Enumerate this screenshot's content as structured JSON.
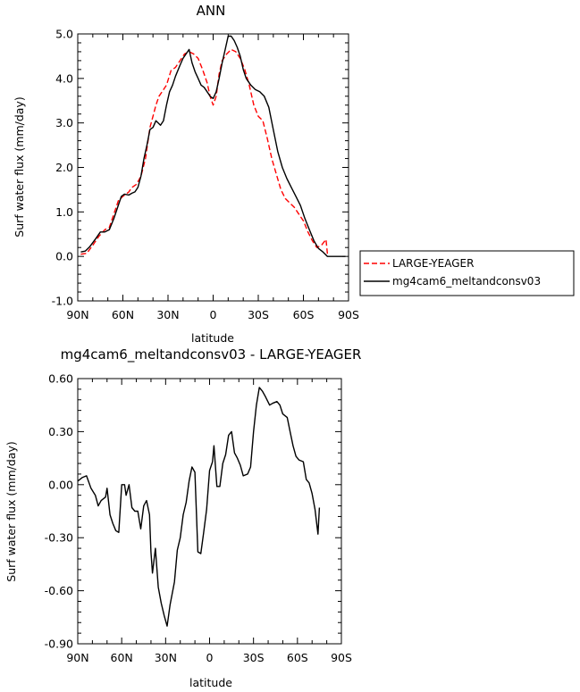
{
  "chart_data": [
    {
      "type": "line",
      "title": "ANN",
      "xlabel": "latitude",
      "ylabel": "Surf water flux (mm/day)",
      "ylim": [
        -1.0,
        5.0
      ],
      "xlim": [
        90,
        -90
      ],
      "xticks": [
        {
          "value": 90,
          "label": "90N"
        },
        {
          "value": 60,
          "label": "60N"
        },
        {
          "value": 30,
          "label": "30N"
        },
        {
          "value": 0,
          "label": "0"
        },
        {
          "value": -30,
          "label": "30S"
        },
        {
          "value": -60,
          "label": "60S"
        },
        {
          "value": -90,
          "label": "90S"
        }
      ],
      "yticks": [
        {
          "value": 5.0,
          "label": "5.0"
        },
        {
          "value": 4.0,
          "label": "4.0"
        },
        {
          "value": 3.0,
          "label": "3.0"
        },
        {
          "value": 2.0,
          "label": "2.0"
        },
        {
          "value": 1.0,
          "label": "1.0"
        },
        {
          "value": 0.0,
          "label": "0.0"
        },
        {
          "value": -1.0,
          "label": "-1.0"
        }
      ],
      "legend_position": "right-outside",
      "series": [
        {
          "name": "LARGE-YEAGER",
          "color": "#ff0000",
          "dash": "dashed",
          "points": [
            [
              88,
              0.05
            ],
            [
              84,
              0.07
            ],
            [
              80,
              0.25
            ],
            [
              76,
              0.45
            ],
            [
              72,
              0.6
            ],
            [
              69,
              0.65
            ],
            [
              66,
              0.95
            ],
            [
              63,
              1.25
            ],
            [
              60,
              1.35
            ],
            [
              58,
              1.4
            ],
            [
              56,
              1.45
            ],
            [
              54,
              1.55
            ],
            [
              51,
              1.62
            ],
            [
              48,
              1.8
            ],
            [
              45,
              2.2
            ],
            [
              42,
              2.9
            ],
            [
              40,
              3.15
            ],
            [
              38,
              3.4
            ],
            [
              36,
              3.6
            ],
            [
              34,
              3.7
            ],
            [
              31,
              3.85
            ],
            [
              28,
              4.18
            ],
            [
              25,
              4.25
            ],
            [
              22,
              4.4
            ],
            [
              19,
              4.55
            ],
            [
              16,
              4.6
            ],
            [
              13,
              4.55
            ],
            [
              10,
              4.45
            ],
            [
              7,
              4.2
            ],
            [
              4,
              3.9
            ],
            [
              2,
              3.6
            ],
            [
              0,
              3.4
            ],
            [
              -2,
              3.6
            ],
            [
              -4,
              4.1
            ],
            [
              -6,
              4.4
            ],
            [
              -9,
              4.55
            ],
            [
              -12,
              4.65
            ],
            [
              -15,
              4.6
            ],
            [
              -18,
              4.45
            ],
            [
              -21,
              4.2
            ],
            [
              -24,
              3.85
            ],
            [
              -27,
              3.4
            ],
            [
              -30,
              3.15
            ],
            [
              -33,
              3.05
            ],
            [
              -36,
              2.65
            ],
            [
              -39,
              2.2
            ],
            [
              -42,
              1.85
            ],
            [
              -45,
              1.5
            ],
            [
              -48,
              1.3
            ],
            [
              -51,
              1.2
            ],
            [
              -54,
              1.1
            ],
            [
              -57,
              0.95
            ],
            [
              -60,
              0.8
            ],
            [
              -63,
              0.55
            ],
            [
              -66,
              0.35
            ],
            [
              -69,
              0.2
            ],
            [
              -72,
              0.25
            ],
            [
              -75,
              0.38
            ],
            [
              -76,
              0.05
            ]
          ]
        },
        {
          "name": "mg4cam6_meltandconsv03",
          "color": "#000000",
          "dash": "solid",
          "points": [
            [
              88,
              0.1
            ],
            [
              85,
              0.12
            ],
            [
              82,
              0.22
            ],
            [
              78,
              0.4
            ],
            [
              75,
              0.55
            ],
            [
              72,
              0.55
            ],
            [
              69,
              0.6
            ],
            [
              66,
              0.85
            ],
            [
              63,
              1.15
            ],
            [
              61,
              1.35
            ],
            [
              59,
              1.4
            ],
            [
              56,
              1.38
            ],
            [
              54,
              1.42
            ],
            [
              52,
              1.45
            ],
            [
              50,
              1.55
            ],
            [
              48,
              1.8
            ],
            [
              46,
              2.2
            ],
            [
              44,
              2.5
            ],
            [
              42,
              2.85
            ],
            [
              40,
              2.9
            ],
            [
              38,
              3.05
            ],
            [
              35,
              2.95
            ],
            [
              33,
              3.05
            ],
            [
              31,
              3.4
            ],
            [
              29,
              3.7
            ],
            [
              27,
              3.85
            ],
            [
              25,
              4.05
            ],
            [
              22,
              4.3
            ],
            [
              20,
              4.45
            ],
            [
              18,
              4.55
            ],
            [
              16,
              4.65
            ],
            [
              14,
              4.35
            ],
            [
              12,
              4.15
            ],
            [
              10,
              4.0
            ],
            [
              8,
              3.85
            ],
            [
              6,
              3.8
            ],
            [
              4,
              3.7
            ],
            [
              2,
              3.6
            ],
            [
              0,
              3.55
            ],
            [
              -2,
              3.7
            ],
            [
              -4,
              4.0
            ],
            [
              -6,
              4.35
            ],
            [
              -8,
              4.65
            ],
            [
              -10,
              4.95
            ],
            [
              -12,
              4.95
            ],
            [
              -14,
              4.85
            ],
            [
              -16,
              4.7
            ],
            [
              -18,
              4.5
            ],
            [
              -20,
              4.2
            ],
            [
              -22,
              4.0
            ],
            [
              -25,
              3.85
            ],
            [
              -28,
              3.75
            ],
            [
              -31,
              3.7
            ],
            [
              -34,
              3.6
            ],
            [
              -37,
              3.35
            ],
            [
              -40,
              2.85
            ],
            [
              -43,
              2.35
            ],
            [
              -46,
              2.0
            ],
            [
              -49,
              1.75
            ],
            [
              -52,
              1.55
            ],
            [
              -55,
              1.35
            ],
            [
              -58,
              1.15
            ],
            [
              -61,
              0.85
            ],
            [
              -64,
              0.6
            ],
            [
              -67,
              0.35
            ],
            [
              -70,
              0.18
            ],
            [
              -73,
              0.1
            ],
            [
              -76,
              0.0
            ],
            [
              -80,
              0.0
            ],
            [
              -84,
              0.0
            ],
            [
              -88,
              0.0
            ]
          ]
        }
      ]
    },
    {
      "type": "line",
      "title": "mg4cam6_meltandconsv03 - LARGE-YEAGER",
      "xlabel": "latitude",
      "ylabel": "Surf water flux (mm/day)",
      "ylim": [
        -0.9,
        0.6
      ],
      "xlim": [
        90,
        -90
      ],
      "xticks": [
        {
          "value": 90,
          "label": "90N"
        },
        {
          "value": 60,
          "label": "60N"
        },
        {
          "value": 30,
          "label": "30N"
        },
        {
          "value": 0,
          "label": "0"
        },
        {
          "value": -30,
          "label": "30S"
        },
        {
          "value": -60,
          "label": "60S"
        },
        {
          "value": -90,
          "label": "90S"
        }
      ],
      "yticks": [
        {
          "value": 0.6,
          "label": "0.60"
        },
        {
          "value": 0.3,
          "label": "0.30"
        },
        {
          "value": 0.0,
          "label": "0.00"
        },
        {
          "value": -0.3,
          "label": "-0.30"
        },
        {
          "value": -0.6,
          "label": "-0.60"
        },
        {
          "value": -0.9,
          "label": "-0.90"
        }
      ],
      "series": [
        {
          "name": "",
          "color": "#000000",
          "dash": "solid",
          "points": [
            [
              90,
              0.02
            ],
            [
              87,
              0.04
            ],
            [
              84,
              0.05
            ],
            [
              81,
              -0.02
            ],
            [
              78,
              -0.06
            ],
            [
              76,
              -0.12
            ],
            [
              74,
              -0.09
            ],
            [
              71,
              -0.07
            ],
            [
              70,
              -0.02
            ],
            [
              68,
              -0.17
            ],
            [
              66,
              -0.22
            ],
            [
              64,
              -0.26
            ],
            [
              62,
              -0.27
            ],
            [
              60,
              0.0
            ],
            [
              58,
              0.0
            ],
            [
              57,
              -0.06
            ],
            [
              55,
              0.0
            ],
            [
              53,
              -0.13
            ],
            [
              51,
              -0.15
            ],
            [
              49,
              -0.15
            ],
            [
              47,
              -0.25
            ],
            [
              45,
              -0.12
            ],
            [
              43,
              -0.09
            ],
            [
              41,
              -0.17
            ],
            [
              40,
              -0.38
            ],
            [
              39,
              -0.5
            ],
            [
              37,
              -0.36
            ],
            [
              35,
              -0.58
            ],
            [
              33,
              -0.67
            ],
            [
              31,
              -0.74
            ],
            [
              29,
              -0.8
            ],
            [
              27,
              -0.68
            ],
            [
              24,
              -0.55
            ],
            [
              22,
              -0.37
            ],
            [
              20,
              -0.3
            ],
            [
              18,
              -0.17
            ],
            [
              16,
              -0.1
            ],
            [
              14,
              0.02
            ],
            [
              12,
              0.1
            ],
            [
              10,
              0.07
            ],
            [
              8,
              -0.38
            ],
            [
              6,
              -0.39
            ],
            [
              4,
              -0.27
            ],
            [
              2,
              -0.14
            ],
            [
              0,
              0.08
            ],
            [
              -2,
              0.13
            ],
            [
              -3,
              0.22
            ],
            [
              -5,
              -0.01
            ],
            [
              -7,
              -0.01
            ],
            [
              -9,
              0.12
            ],
            [
              -11,
              0.17
            ],
            [
              -13,
              0.28
            ],
            [
              -15,
              0.3
            ],
            [
              -17,
              0.18
            ],
            [
              -19,
              0.15
            ],
            [
              -21,
              0.11
            ],
            [
              -23,
              0.05
            ],
            [
              -26,
              0.06
            ],
            [
              -28,
              0.1
            ],
            [
              -30,
              0.3
            ],
            [
              -32,
              0.45
            ],
            [
              -34,
              0.55
            ],
            [
              -36,
              0.53
            ],
            [
              -38,
              0.5
            ],
            [
              -41,
              0.45
            ],
            [
              -43,
              0.46
            ],
            [
              -46,
              0.47
            ],
            [
              -48,
              0.45
            ],
            [
              -50,
              0.4
            ],
            [
              -53,
              0.38
            ],
            [
              -55,
              0.3
            ],
            [
              -57,
              0.22
            ],
            [
              -59,
              0.16
            ],
            [
              -61,
              0.14
            ],
            [
              -64,
              0.13
            ],
            [
              -66,
              0.03
            ],
            [
              -68,
              0.01
            ],
            [
              -70,
              -0.05
            ],
            [
              -72,
              -0.14
            ],
            [
              -74,
              -0.28
            ],
            [
              -75,
              -0.13
            ]
          ]
        }
      ]
    }
  ]
}
